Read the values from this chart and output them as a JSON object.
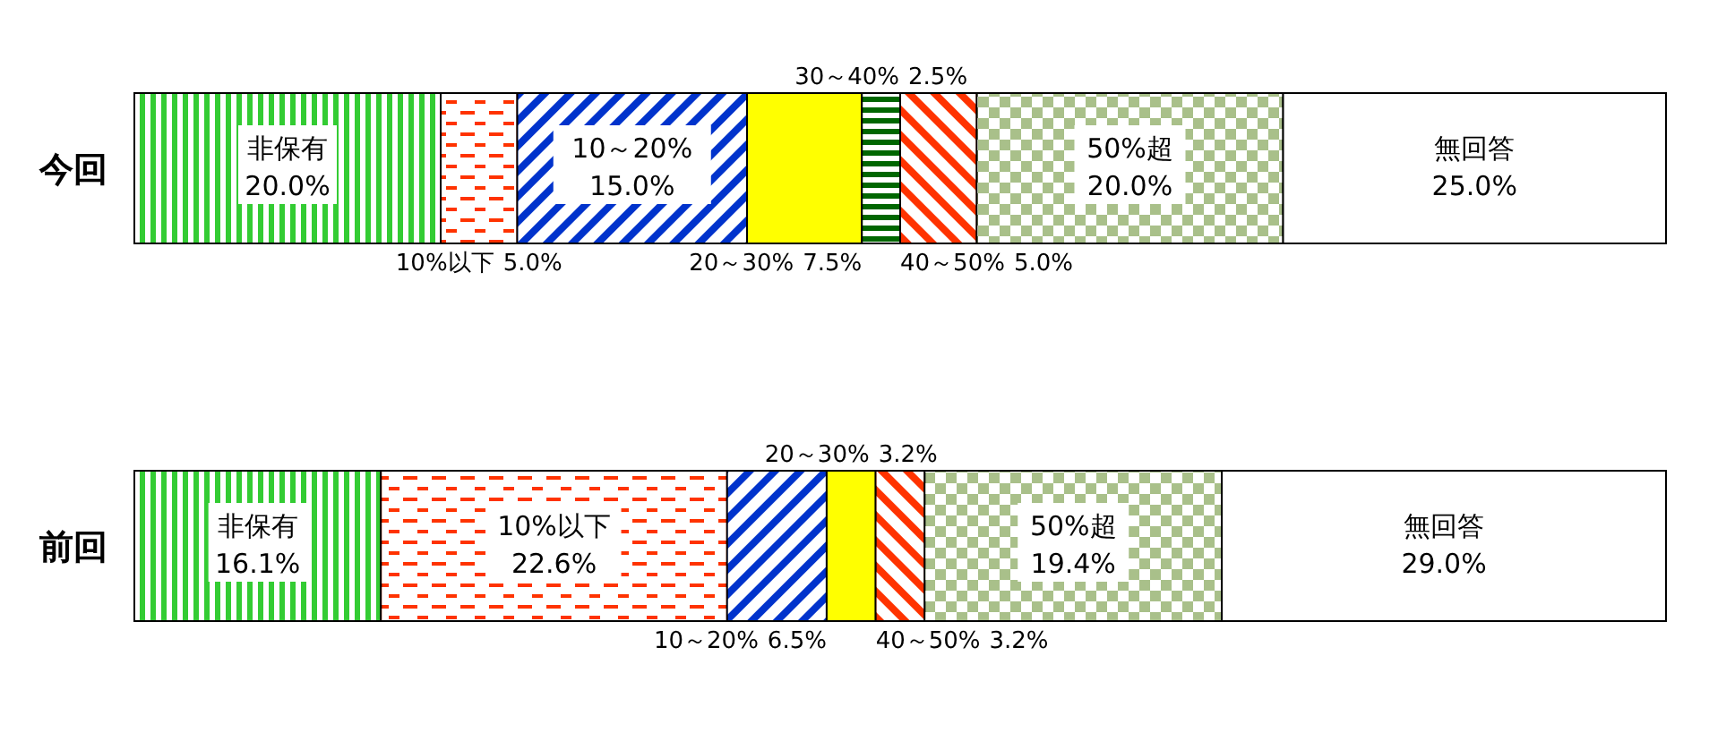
{
  "chart_data": {
    "type": "bar",
    "orientation": "horizontal",
    "stacked": true,
    "categories": [
      "今回",
      "前回"
    ],
    "xlim": [
      0,
      100
    ],
    "tick_labels": "y",
    "series": [
      {
        "name": "非保有",
        "color": "#33cc33",
        "values": [
          20.0,
          16.1
        ],
        "value_labels": [
          "20.0%",
          "16.1%"
        ]
      },
      {
        "name": "10%以下",
        "color": "#ff3300",
        "values": [
          5.0,
          22.6
        ],
        "value_labels": [
          "5.0%",
          "22.6%"
        ]
      },
      {
        "name": "10～20%",
        "color": "#0033cc",
        "values": [
          15.0,
          6.5
        ],
        "value_labels": [
          "15.0%",
          "6.5%"
        ]
      },
      {
        "name": "20～30%",
        "color": "#ffff00",
        "values": [
          7.5,
          3.2
        ],
        "value_labels": [
          "7.5%",
          "3.2%"
        ]
      },
      {
        "name": "30～40%",
        "color": "#006600",
        "values": [
          2.5,
          null
        ],
        "value_labels": [
          "2.5%",
          null
        ]
      },
      {
        "name": "40～50%",
        "color": "#ff3300",
        "values": [
          5.0,
          3.2
        ],
        "value_labels": [
          "5.0%",
          "3.2%"
        ]
      },
      {
        "name": "50%超",
        "color": "#a9c08a",
        "values": [
          20.0,
          19.4
        ],
        "value_labels": [
          "20.0%",
          "19.4%"
        ]
      },
      {
        "name": "無回答",
        "color": "#ffffff",
        "values": [
          25.0,
          29.0
        ],
        "value_labels": [
          "25.0%",
          "29.0%"
        ]
      }
    ]
  }
}
